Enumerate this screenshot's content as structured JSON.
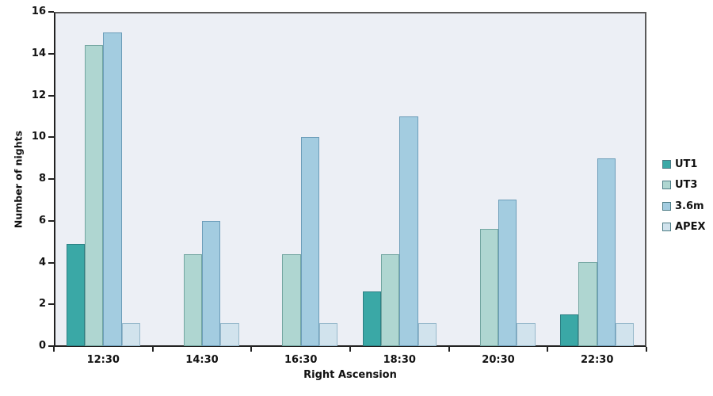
{
  "chart_data": {
    "type": "bar",
    "title": "",
    "xlabel": "Right Ascension",
    "ylabel": "Number of nights",
    "categories": [
      "12:30",
      "14:30",
      "16:30",
      "18:30",
      "20:30",
      "22:30"
    ],
    "series": [
      {
        "name": "UT1",
        "fill": "#3AA8A6",
        "border": "#2C7F83",
        "values": [
          4.9,
          0,
          0,
          2.6,
          0,
          1.5
        ]
      },
      {
        "name": "UT3",
        "fill": "#AFD6D1",
        "border": "#73A6A1",
        "values": [
          14.4,
          4.4,
          4.4,
          4.4,
          5.6,
          4.0
        ]
      },
      {
        "name": "3.6m",
        "fill": "#A3CCE0",
        "border": "#6C9DB9",
        "values": [
          15,
          6,
          10,
          11,
          7,
          9
        ]
      },
      {
        "name": "APEX",
        "fill": "#D1E3ED",
        "border": "#97B9CB",
        "values": [
          1.1,
          1.1,
          1.1,
          1.1,
          1.1,
          1.1
        ]
      }
    ],
    "ylim": [
      0,
      16
    ],
    "yticks": [
      0,
      2,
      4,
      6,
      8,
      10,
      12,
      14,
      16
    ],
    "grid": false,
    "legend_position": "right",
    "plot_bg_color": "#ECEFF5",
    "axis_color": "#222222"
  }
}
